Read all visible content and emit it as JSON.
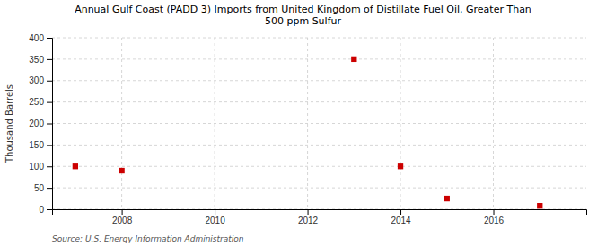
{
  "chart_data": {
    "type": "scatter",
    "title": "Annual Gulf Coast (PADD 3) Imports from United Kingdom of Distillate Fuel Oil, Greater Than\n500 ppm Sulfur",
    "ylabel": "Thousand Barrels",
    "source": "Source: U.S. Energy Information Administration",
    "x": [
      2007,
      2008,
      2013,
      2014,
      2015,
      2017
    ],
    "values": [
      100,
      90,
      350,
      100,
      25,
      8
    ],
    "color": "#cc0000",
    "marker": "square",
    "xlim": [
      2006.5,
      2018
    ],
    "ylim": [
      0,
      400
    ],
    "xticks": [
      2008,
      2010,
      2012,
      2014,
      2016
    ],
    "yticks": [
      0,
      50,
      100,
      150,
      200,
      250,
      300,
      350,
      400
    ],
    "grid": true
  }
}
